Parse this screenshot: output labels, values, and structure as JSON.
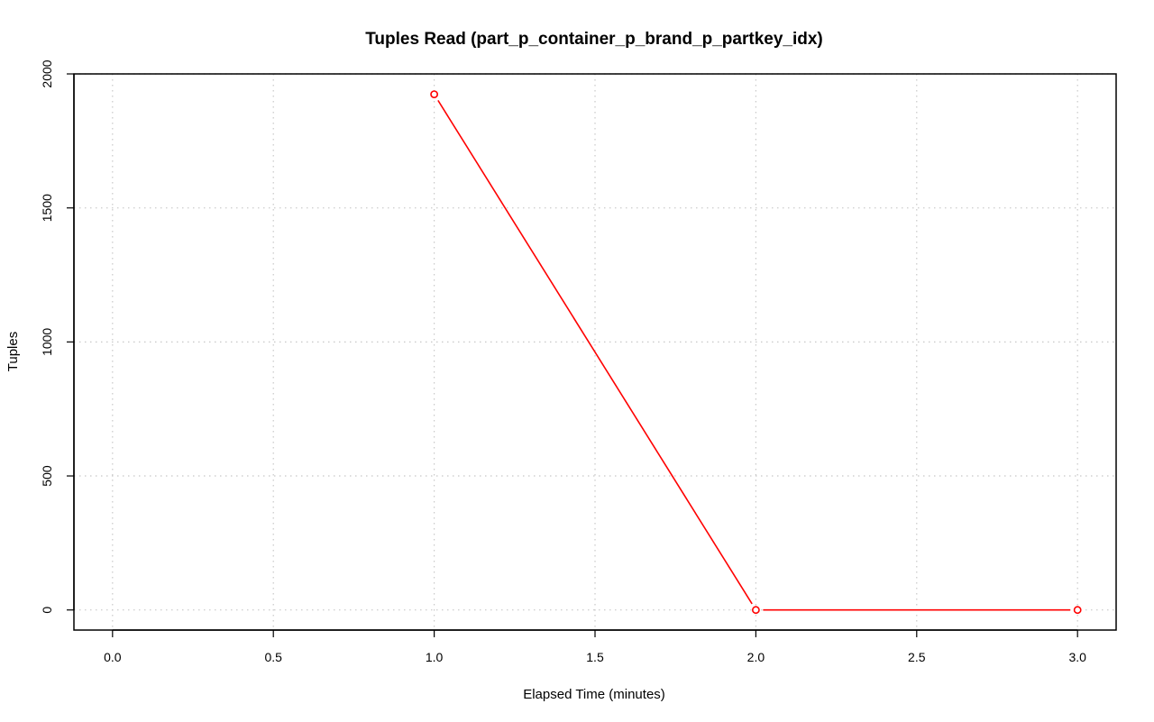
{
  "chart_data": {
    "type": "line",
    "title": "Tuples Read (part_p_container_p_brand_p_partkey_idx)",
    "xlabel": "Elapsed Time (minutes)",
    "ylabel": "Tuples",
    "xlim": [
      -0.12,
      3.12
    ],
    "ylim": [
      -75,
      2000
    ],
    "x_ticks": [
      0.0,
      0.5,
      1.0,
      1.5,
      2.0,
      2.5,
      3.0
    ],
    "x_tick_labels": [
      "0.0",
      "0.5",
      "1.0",
      "1.5",
      "2.0",
      "2.5",
      "3.0"
    ],
    "y_ticks": [
      0,
      500,
      1000,
      1500,
      2000
    ],
    "y_tick_labels": [
      "0",
      "500",
      "1000",
      "1500",
      "2000"
    ],
    "grid": true,
    "series": [
      {
        "color": "#ff0000",
        "marker": "open-circle",
        "x": [
          1,
          2,
          3
        ],
        "y": [
          1924,
          0,
          0
        ]
      }
    ]
  }
}
